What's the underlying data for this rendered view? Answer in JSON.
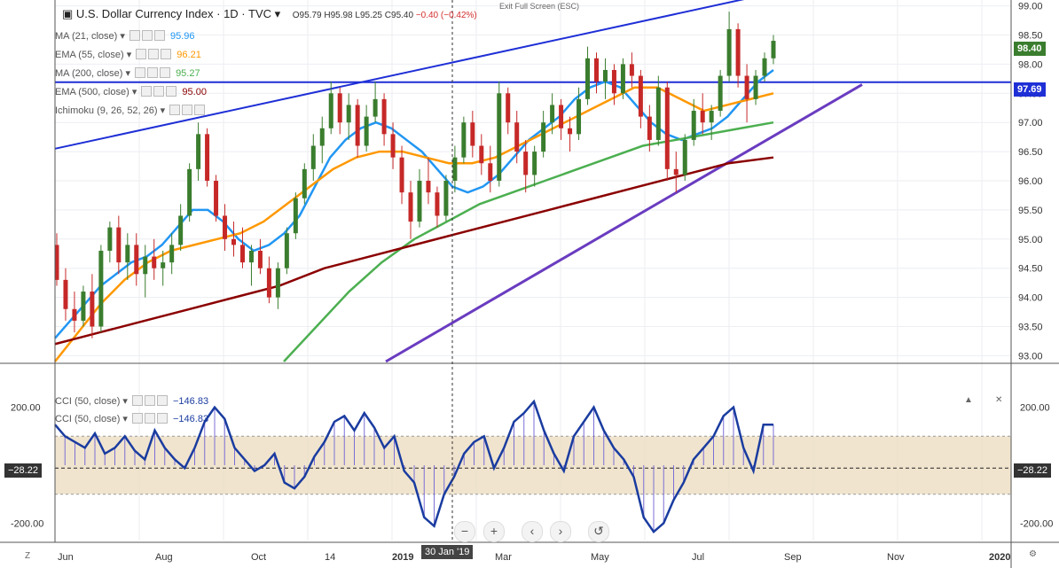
{
  "header": {
    "title": "U.S. Dollar Currency Index · 1D · TVC",
    "open": "O95.79",
    "high": "H95.98",
    "low": "L95.25",
    "close": "C95.40",
    "change": "−0.40 (−0.42%)",
    "exit_full_screen": "Exit Full Screen (ESC)"
  },
  "indicators": [
    {
      "label": "MA (21, close)",
      "value": "95.96",
      "color": "#2196f3"
    },
    {
      "label": "EMA (55, close)",
      "value": "96.21",
      "color": "#ff9800"
    },
    {
      "label": "MA (200, close)",
      "value": "95.27",
      "color": "#4caf50"
    },
    {
      "label": "EMA (500, close)",
      "value": "95.00",
      "color": "#8b0000"
    },
    {
      "label": "Ichimoku (9, 26, 52, 26)",
      "value": "",
      "color": "#2196f3"
    }
  ],
  "cci_legend": [
    {
      "label": "CCI (50, close)",
      "value": "−146.83"
    },
    {
      "label": "CCI (50, close)",
      "value": "−146.83"
    }
  ],
  "price_tags": {
    "last": "98.40",
    "line": "97.69",
    "cci_left": "−28.22",
    "cci_right": "−28.22"
  },
  "crosshair_date": "30 Jan '19",
  "colors": {
    "up": "#3a7d2e",
    "down": "#c62828",
    "cci": "#1a3ca0",
    "band": "#ead9b9"
  },
  "chart_data": {
    "type": "candlestick",
    "price_axis": {
      "ticks": [
        "99.00",
        "98.50",
        "98.00",
        "97.50",
        "97.00",
        "96.50",
        "96.00",
        "95.50",
        "95.00",
        "94.50",
        "94.00",
        "93.50",
        "93.00"
      ],
      "range": [
        92.9,
        99.1
      ]
    },
    "time_axis": [
      "Jun",
      "Aug",
      "Oct",
      "14",
      "2019",
      "Mar",
      "May",
      "Jul",
      "Sep",
      "Nov",
      "2020"
    ],
    "cci_axis": {
      "ticks": [
        "200.00",
        "-200.00"
      ],
      "range": [
        -260,
        260
      ]
    },
    "candles": [
      [
        94.9,
        95.1,
        94.2,
        94.3
      ],
      [
        94.3,
        94.5,
        93.6,
        93.8
      ],
      [
        93.8,
        94.1,
        93.4,
        93.6
      ],
      [
        93.6,
        94.2,
        93.5,
        94.1
      ],
      [
        94.1,
        94.4,
        93.3,
        93.5
      ],
      [
        93.5,
        94.9,
        93.4,
        94.8
      ],
      [
        94.8,
        95.3,
        94.6,
        95.2
      ],
      [
        95.2,
        95.4,
        94.4,
        94.6
      ],
      [
        94.6,
        95.1,
        94.3,
        94.9
      ],
      [
        94.9,
        95.1,
        94.2,
        94.4
      ],
      [
        94.4,
        94.9,
        94.0,
        94.7
      ],
      [
        94.7,
        95.0,
        94.3,
        94.5
      ],
      [
        94.5,
        94.8,
        94.2,
        94.6
      ],
      [
        94.6,
        95.1,
        94.4,
        94.9
      ],
      [
        94.9,
        95.6,
        94.8,
        95.4
      ],
      [
        95.4,
        96.3,
        95.3,
        96.2
      ],
      [
        96.2,
        97.0,
        96.0,
        96.8
      ],
      [
        96.8,
        96.9,
        95.9,
        96.0
      ],
      [
        96.0,
        96.1,
        95.3,
        95.4
      ],
      [
        95.4,
        95.6,
        94.8,
        95.0
      ],
      [
        95.0,
        95.3,
        94.7,
        94.9
      ],
      [
        94.9,
        95.2,
        94.5,
        94.6
      ],
      [
        94.6,
        94.9,
        94.2,
        94.8
      ],
      [
        94.8,
        95.0,
        94.4,
        94.5
      ],
      [
        94.5,
        94.7,
        93.9,
        94.0
      ],
      [
        94.0,
        94.6,
        93.8,
        94.5
      ],
      [
        94.5,
        95.2,
        94.4,
        95.1
      ],
      [
        95.1,
        95.8,
        95.0,
        95.7
      ],
      [
        95.7,
        96.3,
        95.6,
        96.2
      ],
      [
        96.2,
        96.8,
        96.0,
        96.6
      ],
      [
        96.6,
        97.1,
        96.3,
        96.9
      ],
      [
        96.9,
        97.7,
        96.8,
        97.5
      ],
      [
        97.5,
        97.6,
        96.8,
        97.0
      ],
      [
        97.0,
        97.5,
        96.7,
        97.3
      ],
      [
        97.3,
        97.4,
        96.4,
        96.6
      ],
      [
        96.6,
        97.3,
        96.5,
        97.1
      ],
      [
        97.1,
        97.7,
        97.0,
        97.4
      ],
      [
        97.4,
        97.5,
        96.6,
        96.8
      ],
      [
        96.8,
        97.0,
        96.2,
        96.4
      ],
      [
        96.4,
        96.6,
        95.6,
        95.8
      ],
      [
        95.8,
        96.0,
        95.0,
        95.3
      ],
      [
        95.3,
        96.2,
        95.2,
        96.0
      ],
      [
        96.0,
        96.4,
        95.6,
        95.8
      ],
      [
        95.8,
        95.9,
        95.2,
        95.4
      ],
      [
        95.4,
        96.1,
        95.3,
        96.0
      ],
      [
        96.0,
        96.6,
        95.8,
        96.4
      ],
      [
        96.4,
        97.1,
        96.3,
        97.0
      ],
      [
        97.0,
        97.2,
        96.4,
        96.6
      ],
      [
        96.6,
        96.8,
        96.1,
        96.3
      ],
      [
        96.3,
        96.6,
        95.8,
        96.0
      ],
      [
        96.0,
        97.7,
        95.9,
        97.5
      ],
      [
        97.5,
        97.6,
        96.8,
        97.0
      ],
      [
        97.0,
        97.2,
        96.3,
        96.5
      ],
      [
        96.5,
        96.7,
        95.8,
        96.1
      ],
      [
        96.1,
        96.6,
        95.9,
        96.5
      ],
      [
        96.5,
        97.2,
        96.4,
        97.0
      ],
      [
        97.0,
        97.5,
        96.8,
        97.3
      ],
      [
        97.3,
        97.4,
        96.7,
        96.9
      ],
      [
        96.9,
        97.1,
        96.5,
        96.8
      ],
      [
        96.8,
        97.6,
        96.7,
        97.4
      ],
      [
        97.4,
        98.3,
        97.3,
        98.1
      ],
      [
        98.1,
        98.2,
        97.5,
        97.7
      ],
      [
        97.7,
        98.1,
        97.4,
        97.9
      ],
      [
        97.9,
        98.0,
        97.3,
        97.5
      ],
      [
        97.5,
        98.1,
        97.4,
        98.0
      ],
      [
        98.0,
        98.2,
        97.6,
        97.8
      ],
      [
        97.8,
        97.9,
        96.9,
        97.1
      ],
      [
        97.1,
        97.3,
        96.5,
        96.7
      ],
      [
        96.7,
        97.8,
        96.6,
        97.6
      ],
      [
        97.6,
        97.7,
        96.0,
        96.2
      ],
      [
        96.2,
        96.5,
        95.8,
        96.1
      ],
      [
        96.1,
        96.8,
        96.0,
        96.7
      ],
      [
        96.7,
        97.4,
        96.6,
        97.2
      ],
      [
        97.2,
        97.5,
        96.8,
        97.0
      ],
      [
        97.0,
        97.3,
        96.7,
        97.2
      ],
      [
        97.2,
        97.9,
        97.1,
        97.8
      ],
      [
        97.8,
        98.9,
        97.7,
        98.6
      ],
      [
        98.6,
        98.7,
        97.6,
        97.8
      ],
      [
        97.8,
        98.0,
        97.0,
        97.4
      ],
      [
        97.4,
        97.9,
        97.3,
        97.8
      ],
      [
        97.8,
        98.2,
        97.7,
        98.1
      ],
      [
        98.1,
        98.5,
        98.0,
        98.4
      ]
    ],
    "series": [
      {
        "name": "MA (21, close)",
        "color": "#2196f3",
        "values": [
          93.3,
          93.6,
          93.9,
          94.2,
          94.4,
          94.6,
          94.7,
          94.9,
          95.2,
          95.5,
          95.5,
          95.3,
          95.0,
          94.8,
          94.9,
          95.1,
          95.4,
          95.9,
          96.4,
          96.7,
          96.9,
          97.0,
          96.9,
          96.7,
          96.5,
          96.2,
          95.9,
          95.8,
          95.9,
          96.1,
          96.4,
          96.7,
          96.9,
          97.1,
          97.4,
          97.6,
          97.7,
          97.6,
          97.3,
          97.0,
          96.8,
          96.7,
          96.8,
          96.9,
          97.1,
          97.4,
          97.7,
          97.9
        ]
      },
      {
        "name": "EMA (55, close)",
        "color": "#ff9800",
        "values": [
          92.9,
          93.4,
          93.9,
          94.3,
          94.6,
          94.8,
          94.9,
          95.0,
          95.1,
          95.3,
          95.6,
          95.9,
          96.2,
          96.4,
          96.5,
          96.5,
          96.4,
          96.3,
          96.3,
          96.4,
          96.6,
          96.8,
          97.0,
          97.2,
          97.4,
          97.6,
          97.6,
          97.4,
          97.2,
          97.3,
          97.4,
          97.5
        ]
      },
      {
        "name": "MA (200, close)",
        "color": "#4caf50",
        "values": [
          92.9,
          93.5,
          94.1,
          94.6,
          95.0,
          95.3,
          95.6,
          95.8,
          96.0,
          96.2,
          96.4,
          96.6,
          96.7,
          96.8,
          96.9,
          97.0
        ]
      },
      {
        "name": "EMA (500, close)",
        "color": "#8b0000",
        "values": [
          93.2,
          93.4,
          93.6,
          93.8,
          94.0,
          94.2,
          94.5,
          94.7,
          94.9,
          95.1,
          95.3,
          95.5,
          95.7,
          95.9,
          96.1,
          96.3,
          96.4
        ]
      }
    ],
    "cci_values": [
      140,
      100,
      80,
      60,
      110,
      40,
      60,
      100,
      50,
      20,
      120,
      60,
      20,
      -10,
      60,
      150,
      200,
      160,
      60,
      20,
      -20,
      0,
      40,
      -60,
      -80,
      -40,
      30,
      80,
      150,
      170,
      120,
      180,
      130,
      60,
      100,
      -20,
      -60,
      -180,
      -210,
      -100,
      -40,
      40,
      80,
      100,
      -10,
      60,
      150,
      180,
      220,
      120,
      40,
      -20,
      100,
      150,
      200,
      120,
      60,
      20,
      -40,
      -180,
      -230,
      -200,
      -120,
      -60,
      20,
      60,
      100,
      170,
      200,
      60,
      -20,
      140,
      140
    ]
  }
}
